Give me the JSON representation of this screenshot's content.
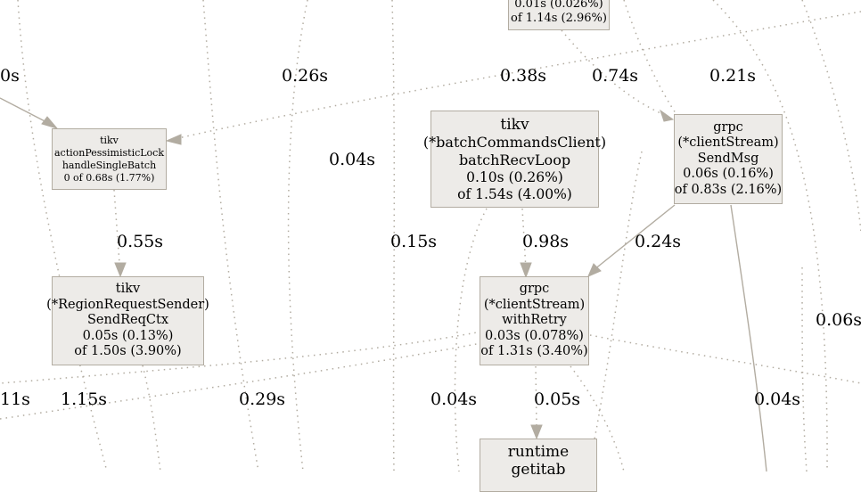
{
  "nodes": {
    "top_partial": {
      "lines": [
        "0.01s (0.026%)",
        "of 1.14s (2.96%)"
      ]
    },
    "handle_single_batch": {
      "lines": [
        "tikv",
        "actionPessimisticLock",
        "handleSingleBatch",
        "0 of 0.68s (1.77%)"
      ]
    },
    "batch_recv_loop": {
      "lines": [
        "tikv",
        "(*batchCommandsClient)",
        "batchRecvLoop",
        "0.10s (0.26%)",
        "of 1.54s (4.00%)"
      ]
    },
    "send_msg": {
      "lines": [
        "grpc",
        "(*clientStream)",
        "SendMsg",
        "0.06s (0.16%)",
        "of 0.83s (2.16%)"
      ]
    },
    "send_req_ctx": {
      "lines": [
        "tikv",
        "(*RegionRequestSender)",
        "SendReqCtx",
        "0.05s (0.13%)",
        "of 1.50s (3.90%)"
      ]
    },
    "with_retry": {
      "lines": [
        "grpc",
        "(*clientStream)",
        "withRetry",
        "0.03s (0.078%)",
        "of 1.31s (3.40%)"
      ]
    },
    "getitab": {
      "lines": [
        "runtime",
        "getitab"
      ]
    }
  },
  "edge_labels": {
    "e_0s": "0s",
    "e_026": "0.26s",
    "e_038": "0.38s",
    "e_074": "0.74s",
    "e_021": "0.21s",
    "e_004a": "0.04s",
    "e_055": "0.55s",
    "e_015": "0.15s",
    "e_098": "0.98s",
    "e_024": "0.24s",
    "e_006": "0.06s",
    "e_11": "11s",
    "e_115": "1.15s",
    "e_029": "0.29s",
    "e_004b": "0.04s",
    "e_005": "0.05s",
    "e_004c": "0.04s"
  },
  "colors": {
    "node_fill": "#edebe8",
    "node_border": "#b2aca1",
    "edge": "#b2aca1"
  }
}
